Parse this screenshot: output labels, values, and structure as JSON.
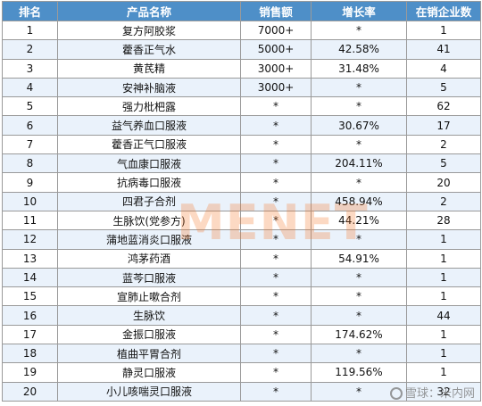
{
  "headers": [
    "排名",
    "产品名称",
    "销售额",
    "增长率",
    "在销企业数"
  ],
  "rows": [
    [
      "1",
      "复方阿胶浆",
      "7000+",
      "*",
      "1"
    ],
    [
      "2",
      "藿香正气水",
      "5000+",
      "42.58%",
      "41"
    ],
    [
      "3",
      "黄芪精",
      "3000+",
      "31.48%",
      "4"
    ],
    [
      "4",
      "安神补脑液",
      "3000+",
      "*",
      "5"
    ],
    [
      "5",
      "强力枇杷露",
      "*",
      "*",
      "62"
    ],
    [
      "6",
      "益气养血口服液",
      "*",
      "30.67%",
      "17"
    ],
    [
      "7",
      "藿香正气口服液",
      "*",
      "*",
      "2"
    ],
    [
      "8",
      "气血康口服液",
      "*",
      "204.11%",
      "5"
    ],
    [
      "9",
      "抗病毒口服液",
      "*",
      "*",
      "20"
    ],
    [
      "10",
      "四君子合剂",
      "*",
      "458.94%",
      "2"
    ],
    [
      "11",
      "生脉饮(党参方)",
      "*",
      "44.21%",
      "28"
    ],
    [
      "12",
      "蒲地蓝消炎口服液",
      "*",
      "*",
      "1"
    ],
    [
      "13",
      "鸿茅药酒",
      "*",
      "54.91%",
      "1"
    ],
    [
      "14",
      "蓝芩口服液",
      "*",
      "*",
      "1"
    ],
    [
      "15",
      "宣肺止嗽合剂",
      "*",
      "*",
      "1"
    ],
    [
      "16",
      "生脉饮",
      "*",
      "*",
      "44"
    ],
    [
      "17",
      "金振口服液",
      "*",
      "174.62%",
      "1"
    ],
    [
      "18",
      "植曲平胃合剂",
      "*",
      "*",
      "1"
    ],
    [
      "19",
      "静灵口服液",
      "*",
      "119.56%",
      "1"
    ],
    [
      "20",
      "小儿咳喘灵口服液",
      "*",
      "*",
      "32"
    ]
  ],
  "watermark": {
    "main": "MENET",
    "corner": "雪球：米内网"
  }
}
